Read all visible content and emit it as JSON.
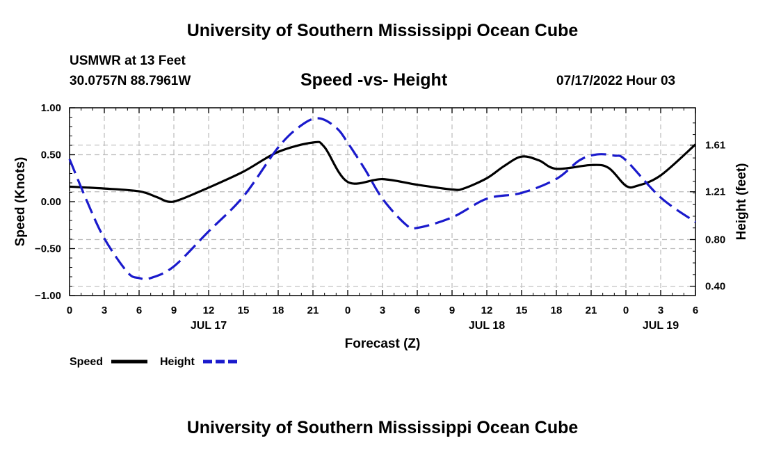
{
  "header": {
    "title": "University of Southern Mississippi Ocean Cube",
    "station": "USMWR at 13 Feet",
    "coords": "30.0757N  88.7961W",
    "chart_title": "Speed -vs- Height",
    "datetime": "07/17/2022 Hour 03"
  },
  "footer": {
    "title": "University of Southern Mississippi Ocean Cube"
  },
  "legend": {
    "speed": "Speed",
    "height": "Height"
  },
  "colors": {
    "speed": "#000000",
    "height": "#1a1acc",
    "grid": "#bbbbbb"
  },
  "chart_data": {
    "type": "line",
    "title": "Speed -vs- Height",
    "xlabel": "Forecast (Z)",
    "ylabel": "Speed (Knots)",
    "y2label": "Height (feet)",
    "xlim": [
      0,
      54
    ],
    "ylim": [
      -1.0,
      1.0
    ],
    "y2lim": [
      0.32,
      1.93
    ],
    "x_ticks": [
      0,
      3,
      6,
      9,
      12,
      15,
      18,
      21,
      24,
      27,
      30,
      33,
      36,
      39,
      42,
      45,
      48,
      51,
      54
    ],
    "x_tick_labels": [
      "0",
      "3",
      "6",
      "9",
      "12",
      "15",
      "18",
      "21",
      "0",
      "3",
      "6",
      "9",
      "12",
      "15",
      "18",
      "21",
      "0",
      "3",
      "6"
    ],
    "date_labels": [
      {
        "x": 12,
        "label": "JUL 17"
      },
      {
        "x": 36,
        "label": "JUL 18"
      },
      {
        "x": 51,
        "label": "JUL 19"
      }
    ],
    "y_ticks": [
      -1.0,
      -0.5,
      0.0,
      0.5,
      1.0
    ],
    "y_tick_labels": [
      "−1.00",
      "−0.50",
      "0.00",
      "0.50",
      "1.00"
    ],
    "y2_ticks": [
      0.4,
      0.8,
      1.21,
      1.61
    ],
    "y2_tick_labels": [
      "0.40",
      "0.80",
      "1.21",
      "1.61"
    ],
    "series": [
      {
        "name": "Speed",
        "axis": "left",
        "style": "solid",
        "x": [
          0,
          3,
          6,
          7.5,
          8.5,
          9.5,
          12,
          15,
          18,
          21,
          22,
          24,
          27,
          30,
          33,
          34,
          36,
          37.5,
          39,
          40.5,
          42,
          45,
          46.5,
          48,
          49,
          51,
          54
        ],
        "y": [
          0.16,
          0.14,
          0.11,
          0.05,
          0.0,
          0.02,
          0.15,
          0.32,
          0.53,
          0.63,
          0.58,
          0.21,
          0.24,
          0.18,
          0.13,
          0.14,
          0.25,
          0.38,
          0.48,
          0.44,
          0.35,
          0.39,
          0.36,
          0.17,
          0.17,
          0.28,
          0.61
        ]
      },
      {
        "name": "Height",
        "axis": "right",
        "style": "dashed",
        "x": [
          0,
          1.5,
          3,
          5,
          6,
          7,
          9,
          12,
          15,
          18,
          20,
          21.5,
          23,
          24,
          25.5,
          27,
          29,
          30,
          33,
          36,
          39,
          42,
          44,
          45.5,
          47,
          48,
          51,
          54
        ],
        "y": [
          1.49,
          1.13,
          0.81,
          0.52,
          0.47,
          0.47,
          0.57,
          0.87,
          1.17,
          1.59,
          1.78,
          1.84,
          1.76,
          1.63,
          1.4,
          1.15,
          0.93,
          0.9,
          0.99,
          1.15,
          1.2,
          1.32,
          1.48,
          1.53,
          1.52,
          1.48,
          1.16,
          0.95
        ]
      }
    ]
  }
}
